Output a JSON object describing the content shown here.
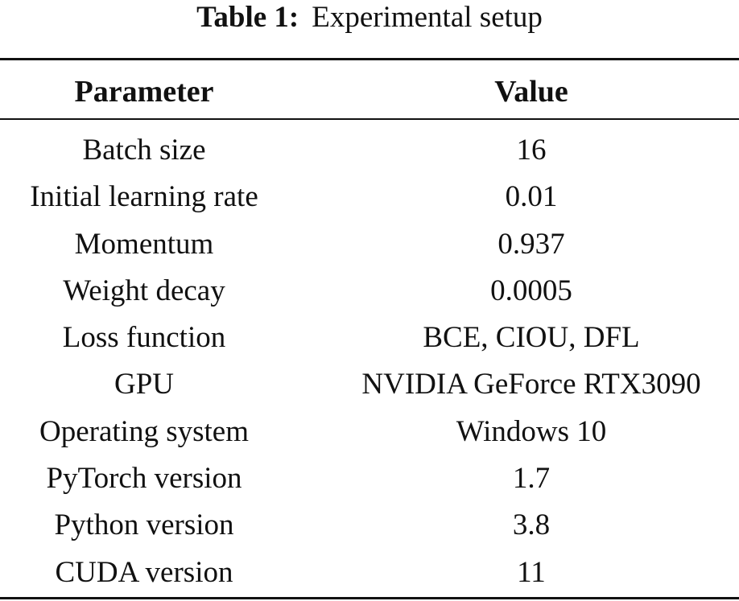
{
  "caption": {
    "label": "Table 1:",
    "text": "Experimental setup"
  },
  "table": {
    "headers": [
      "Parameter",
      "Value"
    ],
    "rows": [
      [
        "Batch size",
        "16"
      ],
      [
        "Initial learning rate",
        "0.01"
      ],
      [
        "Momentum",
        "0.937"
      ],
      [
        "Weight decay",
        "0.0005"
      ],
      [
        "Loss function",
        "BCE, CIOU, DFL"
      ],
      [
        "GPU",
        "NVIDIA GeForce RTX3090"
      ],
      [
        "Operating system",
        "Windows 10"
      ],
      [
        "PyTorch version",
        "1.7"
      ],
      [
        "Python version",
        "3.8"
      ],
      [
        "CUDA version",
        "11"
      ]
    ]
  }
}
